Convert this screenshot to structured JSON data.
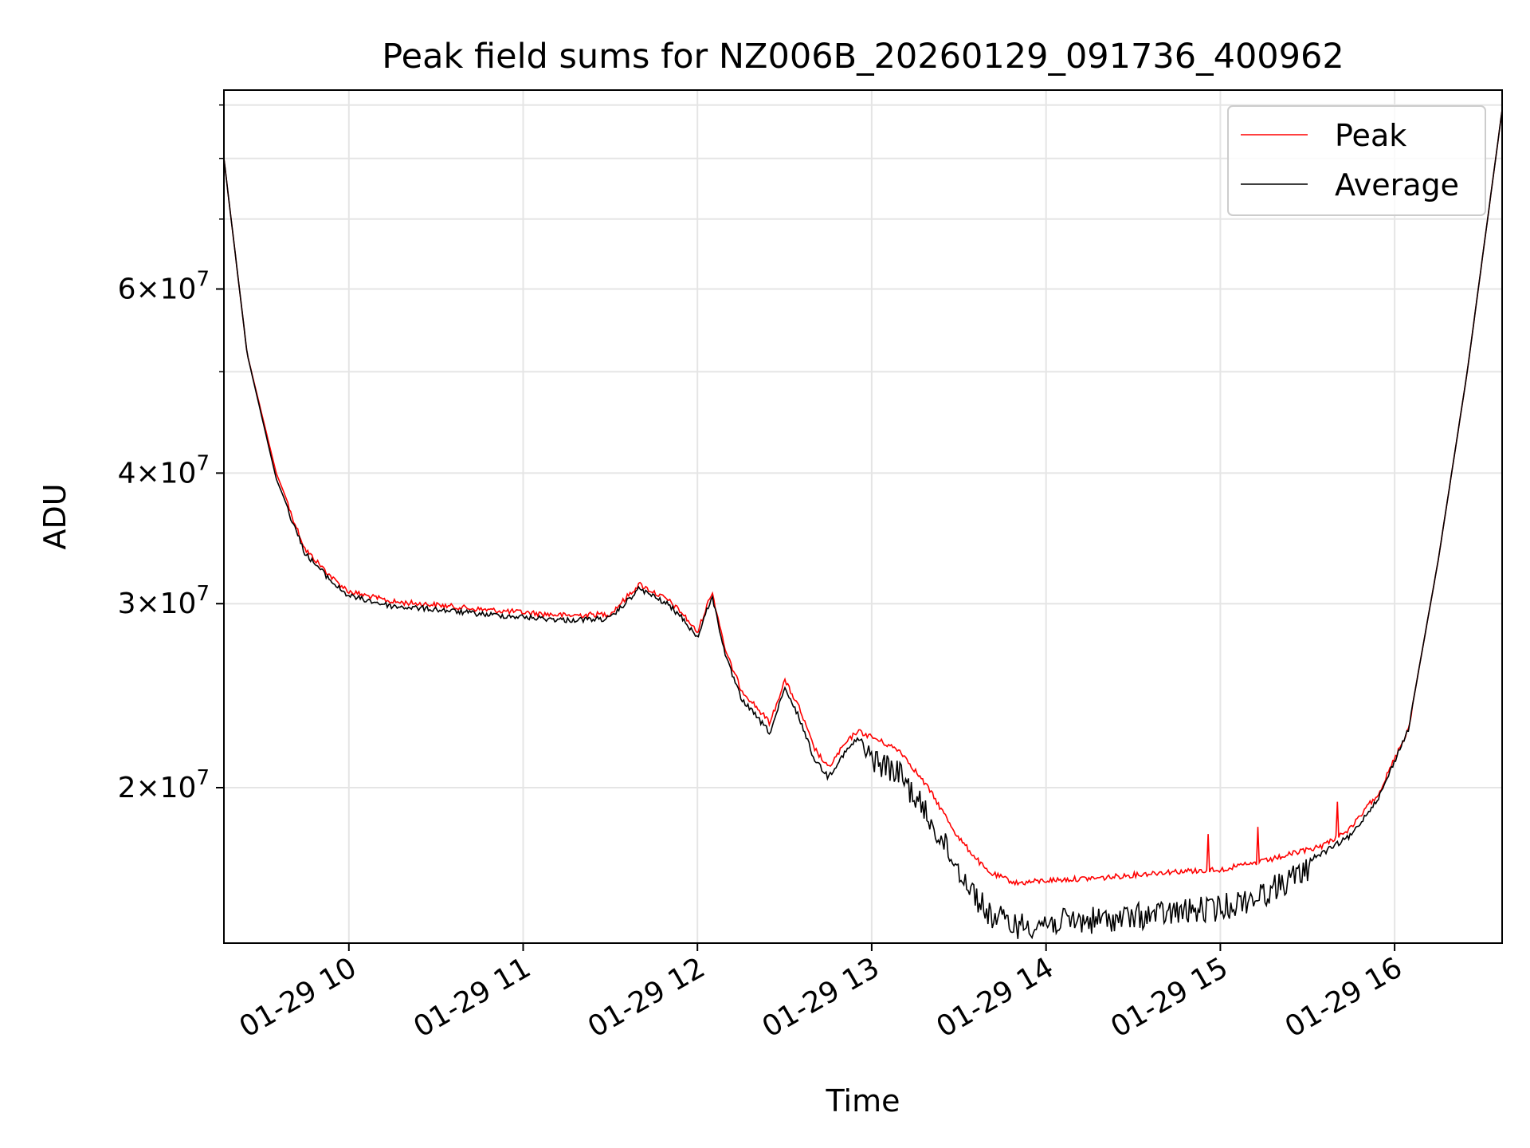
{
  "chart_data": {
    "type": "line",
    "title": "Peak field sums for NZ006B_20260129_091736_400962",
    "xlabel": "Time",
    "ylabel": "ADU",
    "y_scale": "log",
    "xlim": [
      "2026-01-29 09:17",
      "2026-01-29 16:37"
    ],
    "ylim": [
      14200000,
      93000000
    ],
    "x_tick_labels": [
      "01-29 10",
      "01-29 11",
      "01-29 12",
      "01-29 13",
      "01-29 14",
      "01-29 15",
      "01-29 16"
    ],
    "x_ticks": [
      "2026-01-29 10:00",
      "2026-01-29 11:00",
      "2026-01-29 12:00",
      "2026-01-29 13:00",
      "2026-01-29 14:00",
      "2026-01-29 15:00",
      "2026-01-29 16:00"
    ],
    "y_major_ticks": [
      {
        "value": 20000000,
        "mantissa": "2",
        "exponent": "7"
      },
      {
        "value": 30000000,
        "mantissa": "3",
        "exponent": "7"
      },
      {
        "value": 40000000,
        "mantissa": "4",
        "exponent": "7"
      },
      {
        "value": 60000000,
        "mantissa": "6",
        "exponent": "7"
      }
    ],
    "y_minor_ticks": [
      50000000,
      70000000,
      80000000,
      90000000
    ],
    "grid": true,
    "legend": {
      "position": "top-right",
      "entries": [
        "Peak",
        "Average"
      ]
    },
    "series": [
      {
        "name": "Peak",
        "color": "#ff0000",
        "x": [
          "2026-01-29 09:17",
          "2026-01-29 09:25",
          "2026-01-29 09:35",
          "2026-01-29 09:45",
          "2026-01-29 09:55",
          "2026-01-29 10:00",
          "2026-01-29 10:15",
          "2026-01-29 10:30",
          "2026-01-29 10:45",
          "2026-01-29 11:00",
          "2026-01-29 11:15",
          "2026-01-29 11:30",
          "2026-01-29 11:40",
          "2026-01-29 11:50",
          "2026-01-29 11:55",
          "2026-01-29 12:00",
          "2026-01-29 12:05",
          "2026-01-29 12:10",
          "2026-01-29 12:15",
          "2026-01-29 12:25",
          "2026-01-29 12:30",
          "2026-01-29 12:35",
          "2026-01-29 12:40",
          "2026-01-29 12:45",
          "2026-01-29 12:50",
          "2026-01-29 12:55",
          "2026-01-29 13:00",
          "2026-01-29 13:10",
          "2026-01-29 13:20",
          "2026-01-29 13:30",
          "2026-01-29 13:40",
          "2026-01-29 13:50",
          "2026-01-29 14:00",
          "2026-01-29 14:20",
          "2026-01-29 14:40",
          "2026-01-29 15:00",
          "2026-01-29 15:15",
          "2026-01-29 15:25",
          "2026-01-29 15:35",
          "2026-01-29 15:45",
          "2026-01-29 15:55",
          "2026-01-29 16:05",
          "2026-01-29 16:15",
          "2026-01-29 16:25",
          "2026-01-29 16:37"
        ],
        "y": [
          80000000,
          52000000,
          40000000,
          34000000,
          31800000,
          31000000,
          30300000,
          30100000,
          29800000,
          29600000,
          29400000,
          29500000,
          31500000,
          30400000,
          29500000,
          28300000,
          31000000,
          27000000,
          25000000,
          23200000,
          25500000,
          24000000,
          22000000,
          21000000,
          22000000,
          22800000,
          22500000,
          21800000,
          20000000,
          18000000,
          16700000,
          16300000,
          16400000,
          16500000,
          16700000,
          16800000,
          17100000,
          17400000,
          17700000,
          18400000,
          20000000,
          23000000,
          33000000,
          50000000,
          89000000
        ]
      },
      {
        "name": "Average",
        "color": "#000000",
        "x": [
          "2026-01-29 09:17",
          "2026-01-29 09:25",
          "2026-01-29 09:35",
          "2026-01-29 09:45",
          "2026-01-29 09:55",
          "2026-01-29 10:00",
          "2026-01-29 10:15",
          "2026-01-29 10:30",
          "2026-01-29 10:45",
          "2026-01-29 11:00",
          "2026-01-29 11:15",
          "2026-01-29 11:30",
          "2026-01-29 11:40",
          "2026-01-29 11:50",
          "2026-01-29 11:55",
          "2026-01-29 12:00",
          "2026-01-29 12:05",
          "2026-01-29 12:10",
          "2026-01-29 12:15",
          "2026-01-29 12:25",
          "2026-01-29 12:30",
          "2026-01-29 12:35",
          "2026-01-29 12:40",
          "2026-01-29 12:45",
          "2026-01-29 12:50",
          "2026-01-29 12:55",
          "2026-01-29 13:00",
          "2026-01-29 13:10",
          "2026-01-29 13:20",
          "2026-01-29 13:30",
          "2026-01-29 13:40",
          "2026-01-29 13:50",
          "2026-01-29 14:00",
          "2026-01-29 14:20",
          "2026-01-29 14:40",
          "2026-01-29 15:00",
          "2026-01-29 15:15",
          "2026-01-29 15:25",
          "2026-01-29 15:35",
          "2026-01-29 15:45",
          "2026-01-29 15:55",
          "2026-01-29 16:05",
          "2026-01-29 16:15",
          "2026-01-29 16:25",
          "2026-01-29 16:37"
        ],
        "y": [
          80000000,
          52000000,
          39500000,
          33700000,
          31500000,
          30700000,
          30000000,
          29800000,
          29500000,
          29300000,
          29100000,
          29200000,
          31200000,
          30100000,
          29200000,
          28000000,
          30700000,
          26700000,
          24500000,
          22700000,
          25000000,
          23500000,
          21500000,
          20600000,
          21600000,
          22400000,
          22000000,
          21200000,
          19200000,
          17200000,
          15600000,
          15200000,
          15300000,
          15400000,
          15600000,
          15800000,
          16300000,
          16900000,
          17400000,
          18100000,
          19800000,
          23000000,
          33000000,
          50000000,
          89000000
        ]
      }
    ]
  }
}
